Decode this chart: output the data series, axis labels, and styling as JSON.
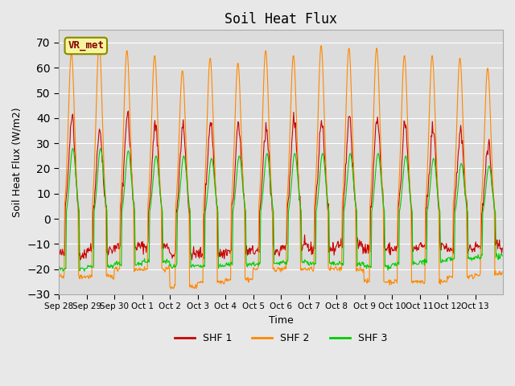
{
  "title": "Soil Heat Flux",
  "ylabel": "Soil Heat Flux (W/m2)",
  "xlabel": "Time",
  "ylim": [
    -30,
    75
  ],
  "yticks": [
    -30,
    -20,
    -10,
    0,
    10,
    20,
    30,
    40,
    50,
    60,
    70
  ],
  "background_color": "#e8e8e8",
  "plot_bg_color": "#dcdcdc",
  "grid_color": "white",
  "colors": {
    "SHF 1": "#cc0000",
    "SHF 2": "#ff8800",
    "SHF 3": "#00cc00"
  },
  "legend_label": "VR_met",
  "x_tick_labels": [
    "Sep 28",
    "Sep 29",
    "Sep 30",
    "Oct 1",
    "Oct 2",
    "Oct 3",
    "Oct 4",
    "Oct 5",
    "Oct 6",
    "Oct 7",
    "Oct 8",
    "Oct 9",
    "Oct 10",
    "Oct 11",
    "Oct 12",
    "Oct 13"
  ],
  "n_days": 16,
  "samples_per_day": 48,
  "day_peaks_shf1": [
    41,
    35,
    41,
    38,
    36,
    38,
    38,
    37,
    40,
    39,
    40,
    40,
    38,
    35,
    35,
    30
  ],
  "day_peaks_shf2": [
    66,
    70,
    67,
    65,
    59,
    64,
    62,
    67,
    65,
    69,
    68,
    68,
    65,
    65,
    64,
    60
  ],
  "day_peaks_shf3": [
    28,
    28,
    27,
    25,
    25,
    24,
    25,
    26,
    26,
    26,
    26,
    26,
    25,
    24,
    22,
    21
  ],
  "day_night_shf1": [
    -14,
    -12,
    -11,
    -11,
    -14,
    -14,
    -13,
    -13,
    -11,
    -12,
    -10,
    -12,
    -12,
    -11,
    -12,
    -11
  ],
  "day_night_shf2": [
    -23,
    -23,
    -20,
    -20,
    -27,
    -25,
    -24,
    -20,
    -20,
    -20,
    -20,
    -25,
    -25,
    -25,
    -23,
    -22
  ],
  "day_night_shf3": [
    -20,
    -19,
    -18,
    -17,
    -19,
    -19,
    -18,
    -18,
    -17,
    -18,
    -18,
    -19,
    -18,
    -17,
    -16,
    -15
  ]
}
